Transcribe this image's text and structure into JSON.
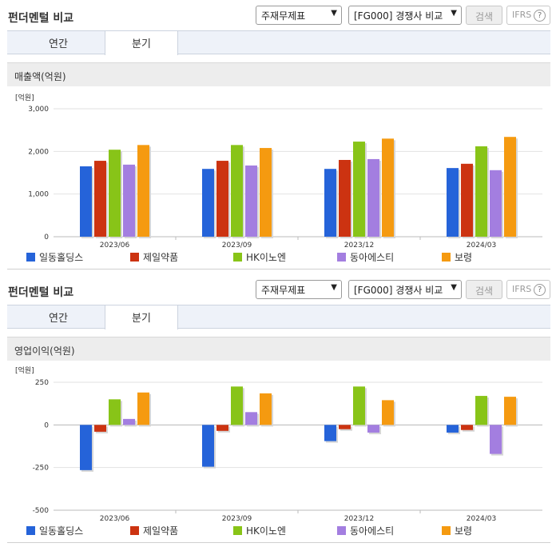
{
  "panels": [
    {
      "title": "펀더멘털 비교",
      "report_select": "주재무제표",
      "peer_select": "[FG000] 경쟁사 비교",
      "search_label": "검색",
      "ifrs_label": "IFRS",
      "help_symbol": "?",
      "tabs": [
        {
          "label": "연간",
          "active": false
        },
        {
          "label": "분기",
          "active": true
        }
      ],
      "metric_title": "매출액(억원)",
      "unit_label": "[억원]",
      "chart_data": {
        "type": "bar",
        "ylabel": "[억원]",
        "ylim": [
          0,
          3000
        ],
        "yticks": [
          0,
          1000,
          2000,
          3000
        ],
        "ytick_labels": [
          "0",
          "1,000",
          "2,000",
          "3,000"
        ],
        "categories": [
          "2023/06",
          "2023/09",
          "2023/12",
          "2024/03"
        ],
        "series": [
          {
            "name": "일동홀딩스",
            "color": "#2563d9",
            "values": [
              1650,
              1590,
              1590,
              1610
            ]
          },
          {
            "name": "제일약품",
            "color": "#cc3311",
            "values": [
              1780,
              1780,
              1800,
              1710
            ]
          },
          {
            "name": "HK이노엔",
            "color": "#88c418",
            "values": [
              2040,
              2150,
              2230,
              2120
            ]
          },
          {
            "name": "동아에스티",
            "color": "#a37ee0",
            "values": [
              1690,
              1670,
              1820,
              1560
            ]
          },
          {
            "name": "보령",
            "color": "#f59a10",
            "values": [
              2150,
              2080,
              2300,
              2340
            ]
          }
        ],
        "legend_position": "bottom",
        "grid": true
      }
    },
    {
      "title": "펀더멘털 비교",
      "report_select": "주재무제표",
      "peer_select": "[FG000] 경쟁사 비교",
      "search_label": "검색",
      "ifrs_label": "IFRS",
      "help_symbol": "?",
      "tabs": [
        {
          "label": "연간",
          "active": false
        },
        {
          "label": "분기",
          "active": true
        }
      ],
      "metric_title": "영업이익(억원)",
      "unit_label": "[억원]",
      "chart_data": {
        "type": "bar",
        "ylabel": "[억원]",
        "ylim": [
          -500,
          250
        ],
        "yticks": [
          -500,
          -250,
          0,
          250
        ],
        "ytick_labels": [
          "-500",
          "-250",
          "0",
          "250"
        ],
        "categories": [
          "2023/06",
          "2023/09",
          "2023/12",
          "2024/03"
        ],
        "series": [
          {
            "name": "일동홀딩스",
            "color": "#2563d9",
            "values": [
              -265,
              -245,
              -95,
              -45
            ]
          },
          {
            "name": "제일약품",
            "color": "#cc3311",
            "values": [
              -40,
              -35,
              -25,
              -30
            ]
          },
          {
            "name": "HK이노엔",
            "color": "#88c418",
            "values": [
              150,
              225,
              225,
              170
            ]
          },
          {
            "name": "동아에스티",
            "color": "#a37ee0",
            "values": [
              35,
              75,
              -45,
              -170
            ]
          },
          {
            "name": "보령",
            "color": "#f59a10",
            "values": [
              190,
              185,
              145,
              165
            ]
          }
        ],
        "legend_position": "bottom",
        "grid": true
      }
    }
  ]
}
